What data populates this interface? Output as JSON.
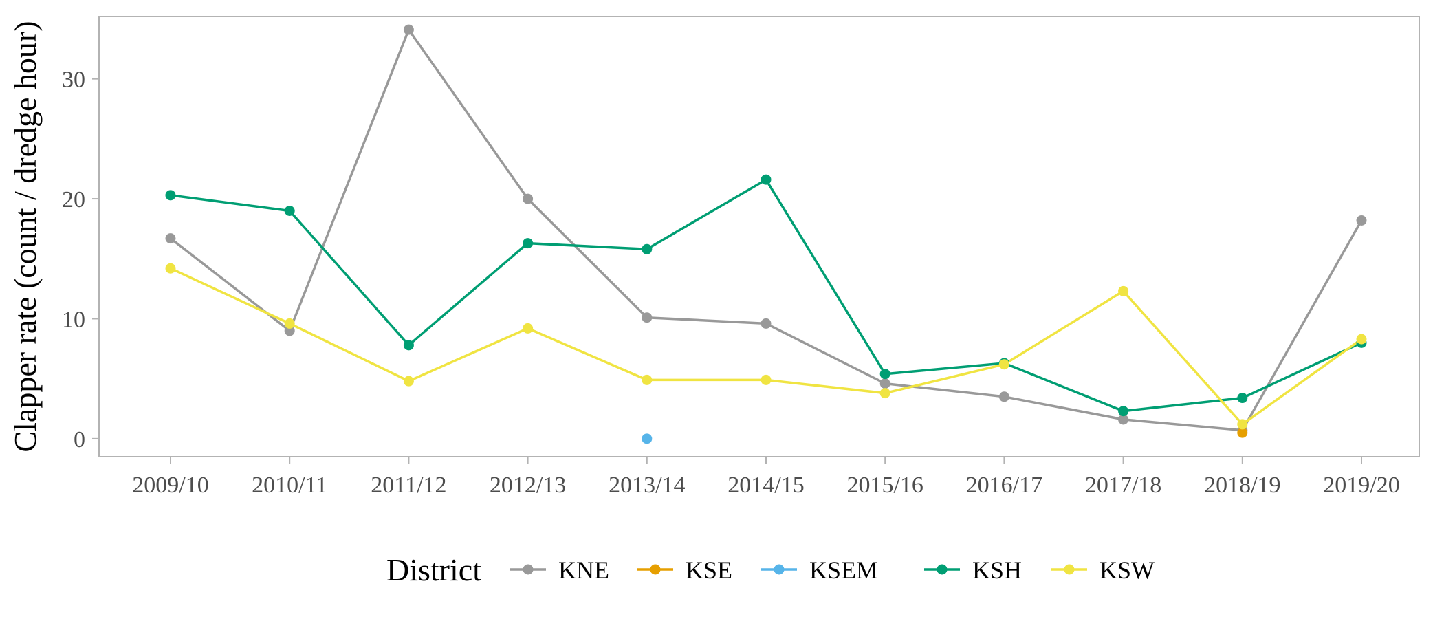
{
  "chart_data": {
    "type": "line",
    "title": "",
    "xlabel": "",
    "ylabel": "Clapper rate (count / dredge hour)",
    "categories": [
      "2009/10",
      "2010/11",
      "2011/12",
      "2012/13",
      "2013/14",
      "2014/15",
      "2015/16",
      "2016/17",
      "2017/18",
      "2018/19",
      "2019/20"
    ],
    "ylim": [
      -1.5,
      35.2
    ],
    "yticks": [
      0,
      10,
      20,
      30
    ],
    "grid": false,
    "legend": {
      "title": "District",
      "position": "bottom"
    },
    "series": [
      {
        "name": "KNE",
        "color": "#999999",
        "values": [
          16.7,
          9.0,
          34.1,
          20.0,
          10.1,
          9.6,
          4.6,
          3.5,
          1.6,
          0.7,
          18.2
        ]
      },
      {
        "name": "KSE",
        "color": "#E69F00",
        "values": [
          null,
          null,
          null,
          null,
          null,
          null,
          null,
          null,
          null,
          0.5,
          null
        ]
      },
      {
        "name": "KSEM",
        "color": "#56B4E9",
        "values": [
          null,
          null,
          null,
          null,
          0.0,
          null,
          null,
          null,
          null,
          null,
          null
        ]
      },
      {
        "name": "KSH",
        "color": "#009E73",
        "values": [
          20.3,
          19.0,
          7.8,
          16.3,
          15.8,
          21.6,
          5.4,
          6.3,
          2.3,
          3.4,
          8.0
        ]
      },
      {
        "name": "KSW",
        "color": "#F0E442",
        "values": [
          14.2,
          9.6,
          4.8,
          9.2,
          4.9,
          4.9,
          3.8,
          6.2,
          12.3,
          1.2,
          8.3
        ]
      }
    ]
  }
}
